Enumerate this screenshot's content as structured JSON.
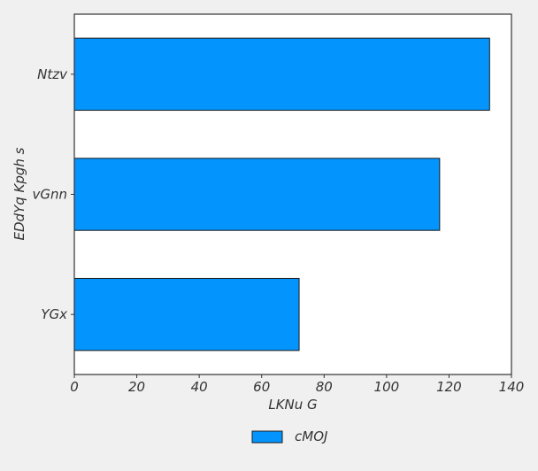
{
  "chart_data": {
    "type": "bar",
    "orientation": "horizontal",
    "categories": [
      "Ntzv",
      "vGnn",
      "YGx"
    ],
    "series": [
      {
        "name": "cMOJ",
        "values": [
          133,
          117,
          72
        ],
        "color": "#0394fe"
      }
    ],
    "xlabel": "LKNu G",
    "ylabel": "EDdYq Kpgh s",
    "xlim": [
      0,
      140
    ],
    "xticks": [
      0,
      20,
      40,
      60,
      80,
      100,
      120,
      140
    ],
    "grid": false,
    "legend_position": "bottom-center"
  },
  "colors": {
    "background": "#f0f0f0",
    "plot_background": "#ffffff",
    "bar_fill": "#0394fe",
    "bar_edge": "#1a1a1a",
    "axis": "#333333"
  }
}
